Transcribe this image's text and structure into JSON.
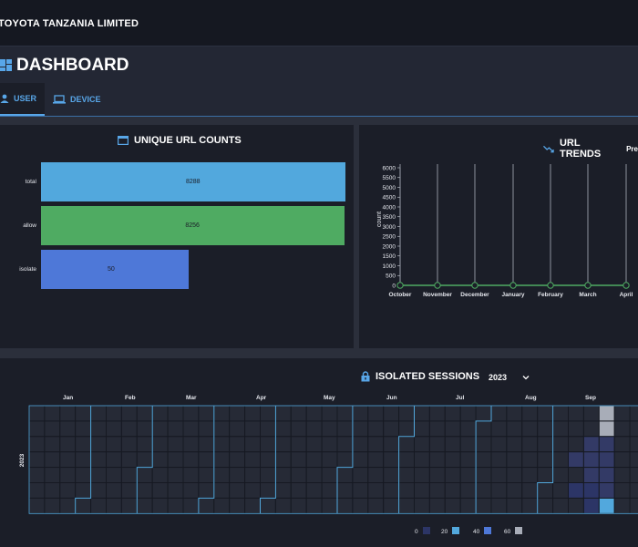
{
  "header": {
    "brand": "TOYOTA TANZANIA LIMITED"
  },
  "page": {
    "title": "DASHBOARD"
  },
  "tabs": [
    {
      "label": "USER",
      "icon": "user-icon"
    },
    {
      "label": "DEVICE",
      "icon": "laptop-icon"
    }
  ],
  "url_counts": {
    "title": "UNIQUE URL COUNTS",
    "chart_data": {
      "type": "bar",
      "orientation": "horizontal",
      "categories": [
        "total",
        "allow",
        "isolate"
      ],
      "values": [
        8288,
        8256,
        50
      ],
      "value_labels": [
        "8288",
        "8256",
        "50"
      ],
      "colors": [
        "#52a8dd",
        "#4fab62",
        "#4e78d8"
      ]
    }
  },
  "url_trends": {
    "title": "URL TRENDS",
    "extra": "Pre",
    "chart_data": {
      "type": "line",
      "ylabel": "count",
      "yticks": [
        "6000",
        "5500",
        "5000",
        "4500",
        "4000",
        "3500",
        "3000",
        "2500",
        "2000",
        "1500",
        "1000",
        "500",
        "0"
      ],
      "ylim": [
        0,
        6000
      ],
      "x": [
        "October",
        "November",
        "December",
        "January",
        "February",
        "March",
        "April"
      ],
      "y": [
        0,
        0,
        0,
        0,
        0,
        0,
        0
      ],
      "color": "#4fab62"
    }
  },
  "isolated_sessions": {
    "title": "ISOLATED SESSIONS",
    "year": "2023",
    "row_label": "2023",
    "months": [
      "Jan",
      "Feb",
      "Mar",
      "Apr",
      "May",
      "Jun",
      "Jul",
      "Aug",
      "Sep"
    ],
    "legend": [
      "0",
      "20",
      "40",
      "60"
    ],
    "legend_colors": [
      "#2c3566",
      "#52a8dd",
      "#4e78d8",
      "#a8adb8"
    ],
    "chart_data": {
      "type": "heatmap",
      "levels": [
        {
          "week": 35,
          "day": 5,
          "value": 20
        },
        {
          "week": 36,
          "day": 5,
          "value": 20
        },
        {
          "week": 35,
          "day": 3,
          "value": 5
        },
        {
          "week": 36,
          "day": 3,
          "value": 5
        },
        {
          "week": 37,
          "day": 3,
          "value": 5
        },
        {
          "week": 36,
          "day": 2,
          "value": 5
        },
        {
          "week": 36,
          "day": 4,
          "value": 5
        },
        {
          "week": 37,
          "day": 0,
          "value": 60
        },
        {
          "week": 37,
          "day": 1,
          "value": 60
        },
        {
          "week": 37,
          "day": 2,
          "value": 5
        },
        {
          "week": 37,
          "day": 4,
          "value": 5
        },
        {
          "week": 37,
          "day": 5,
          "value": 5
        },
        {
          "week": 37,
          "day": 6,
          "value": 40
        },
        {
          "week": 36,
          "day": 6,
          "value": 20
        }
      ]
    }
  }
}
